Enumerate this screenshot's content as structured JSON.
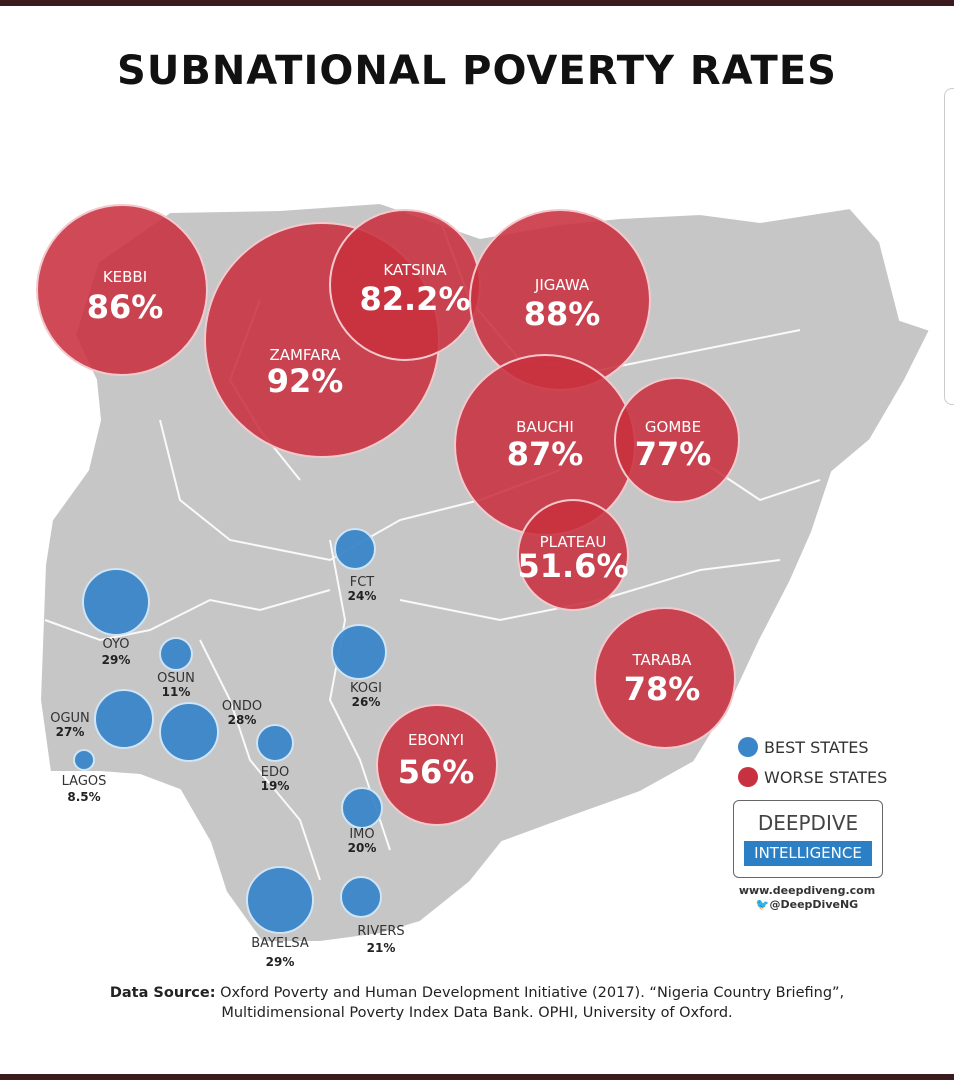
{
  "title": "SUBNATIONAL POVERTY RATES",
  "colors": {
    "best": "#3a86c8",
    "worse": "#c8313f",
    "map": "#c6c6c6",
    "frame": "#3b1b1e"
  },
  "states": [
    {
      "name": "KEBBI",
      "value": "86%",
      "category": "worse"
    },
    {
      "name": "ZAMFARA",
      "value": "92%",
      "category": "worse"
    },
    {
      "name": "KATSINA",
      "value": "82.2%",
      "category": "worse"
    },
    {
      "name": "JIGAWA",
      "value": "88%",
      "category": "worse"
    },
    {
      "name": "BAUCHI",
      "value": "87%",
      "category": "worse"
    },
    {
      "name": "GOMBE",
      "value": "77%",
      "category": "worse"
    },
    {
      "name": "PLATEAU",
      "value": "51.6%",
      "category": "worse"
    },
    {
      "name": "TARABA",
      "value": "78%",
      "category": "worse"
    },
    {
      "name": "EBONYI",
      "value": "56%",
      "category": "worse"
    },
    {
      "name": "FCT",
      "value": "24%",
      "category": "best"
    },
    {
      "name": "OYO",
      "value": "29%",
      "category": "best"
    },
    {
      "name": "OSUN",
      "value": "11%",
      "category": "best"
    },
    {
      "name": "OGUN",
      "value": "27%",
      "category": "best"
    },
    {
      "name": "ONDO",
      "value": "28%",
      "category": "best"
    },
    {
      "name": "LAGOS",
      "value": "8.5%",
      "category": "best"
    },
    {
      "name": "KOGI",
      "value": "26%",
      "category": "best"
    },
    {
      "name": "EDO",
      "value": "19%",
      "category": "best"
    },
    {
      "name": "IMO",
      "value": "20%",
      "category": "best"
    },
    {
      "name": "BAYELSA",
      "value": "29%",
      "category": "best"
    },
    {
      "name": "RIVERS",
      "value": "21%",
      "category": "best"
    }
  ],
  "legend": {
    "best": "BEST STATES",
    "worse": "WORSE STATES"
  },
  "logo": {
    "line1": "DEEPDIVE",
    "line2": "INTELLIGENCE"
  },
  "website": "www.deepdiveng.com",
  "twitter": "@DeepDiveNG",
  "source": {
    "label": "Data Source:",
    "line1": "Oxford Poverty and Human Development Initiative (2017). “Nigeria Country Briefing”,",
    "line2": "Multidimensional Poverty Index Data Bank. OPHI, University of Oxford."
  }
}
